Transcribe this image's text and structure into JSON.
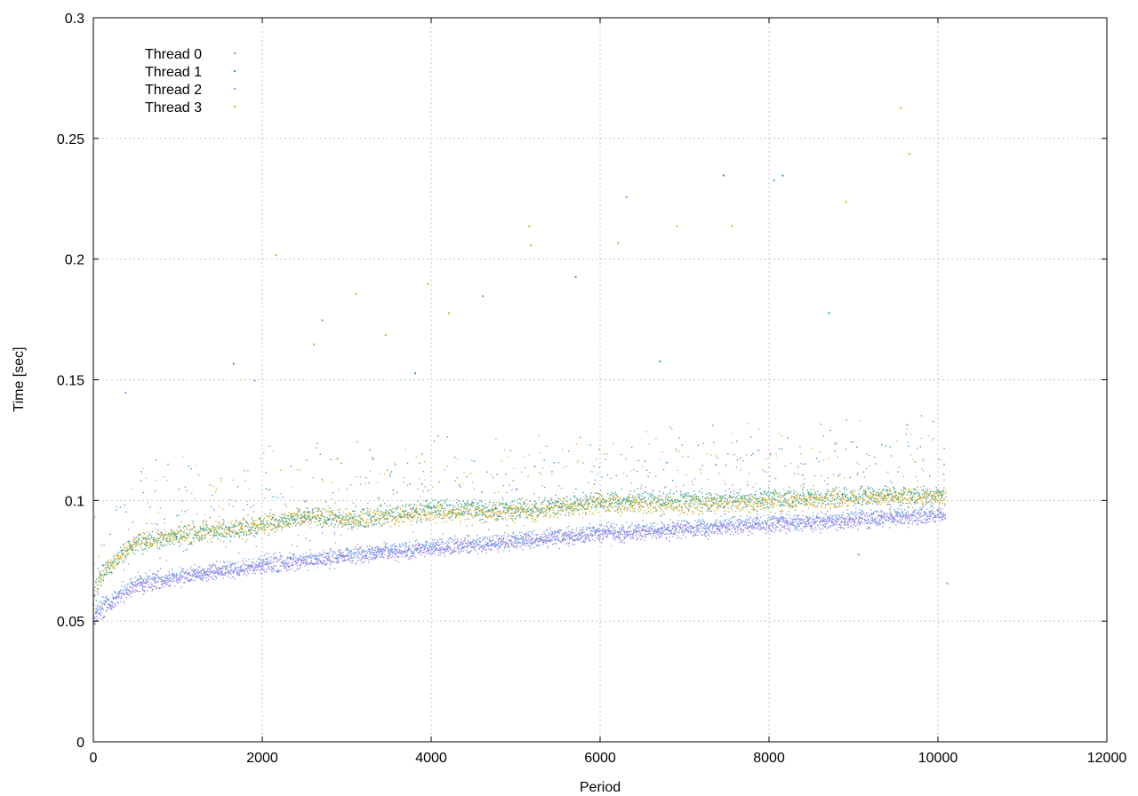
{
  "chart_data": {
    "type": "scatter",
    "title": "",
    "xlabel": "Period",
    "ylabel": "Time [sec]",
    "xlim": [
      0,
      12000
    ],
    "ylim": [
      0,
      0.3
    ],
    "xticks": [
      0,
      2000,
      4000,
      6000,
      8000,
      10000,
      12000
    ],
    "xtick_labels": [
      "0",
      "2000",
      "4000",
      "6000",
      "8000",
      "10000",
      "12000"
    ],
    "yticks": [
      0,
      0.05,
      0.1,
      0.15,
      0.2,
      0.25,
      0.3
    ],
    "ytick_labels": [
      "0",
      "0.05",
      "0.1",
      "0.15",
      "0.2",
      "0.25",
      "0.3"
    ],
    "grid": true,
    "legend_position": "top-left",
    "series": [
      {
        "name": "Thread 0",
        "color": "#9b7be0",
        "period_range": [
          0,
          10080
        ],
        "trend": [
          [
            0,
            0.05
          ],
          [
            100,
            0.055
          ],
          [
            500,
            0.065
          ],
          [
            1000,
            0.068
          ],
          [
            2000,
            0.073
          ],
          [
            3000,
            0.077
          ],
          [
            4000,
            0.08
          ],
          [
            5000,
            0.083
          ],
          [
            6000,
            0.086
          ],
          [
            7000,
            0.088
          ],
          [
            8000,
            0.09
          ],
          [
            9000,
            0.092
          ],
          [
            10000,
            0.094
          ]
        ],
        "outliers": [
          [
            2500,
            0.1
          ],
          [
            5000,
            0.105
          ],
          [
            9050,
            0.078
          ]
        ]
      },
      {
        "name": "Thread 1",
        "color": "#2ca087",
        "period_range": [
          0,
          10080
        ],
        "trend": [
          [
            0,
            0.06
          ],
          [
            100,
            0.07
          ],
          [
            500,
            0.083
          ],
          [
            1000,
            0.086
          ],
          [
            2000,
            0.09
          ],
          [
            2600,
            0.094
          ],
          [
            3000,
            0.092
          ],
          [
            4000,
            0.097
          ],
          [
            5000,
            0.096
          ],
          [
            6000,
            0.1
          ],
          [
            7000,
            0.1
          ],
          [
            8000,
            0.101
          ],
          [
            9000,
            0.102
          ],
          [
            10000,
            0.103
          ]
        ],
        "outliers": [
          [
            1650,
            0.157
          ],
          [
            3800,
            0.153
          ],
          [
            5700,
            0.193
          ],
          [
            6700,
            0.158
          ],
          [
            7450,
            0.235
          ],
          [
            8150,
            0.235
          ],
          [
            8700,
            0.178
          ]
        ]
      },
      {
        "name": "Thread 2",
        "color": "#6aa2f0",
        "period_range": [
          0,
          10080
        ],
        "trend": [
          [
            0,
            0.052
          ],
          [
            100,
            0.057
          ],
          [
            500,
            0.066
          ],
          [
            1000,
            0.069
          ],
          [
            2000,
            0.074
          ],
          [
            3000,
            0.078
          ],
          [
            4000,
            0.081
          ],
          [
            5000,
            0.084
          ],
          [
            6000,
            0.087
          ],
          [
            7000,
            0.089
          ],
          [
            8000,
            0.091
          ],
          [
            9000,
            0.093
          ],
          [
            10000,
            0.095
          ]
        ],
        "outliers": [
          [
            370,
            0.145
          ],
          [
            1900,
            0.15
          ],
          [
            2700,
            0.175
          ],
          [
            4600,
            0.185
          ],
          [
            6300,
            0.226
          ],
          [
            8050,
            0.233
          ],
          [
            10100,
            0.066
          ]
        ]
      },
      {
        "name": "Thread 3",
        "color": "#d4b033",
        "period_range": [
          0,
          10080
        ],
        "trend": [
          [
            0,
            0.06
          ],
          [
            100,
            0.07
          ],
          [
            500,
            0.083
          ],
          [
            1000,
            0.086
          ],
          [
            2000,
            0.09
          ],
          [
            2600,
            0.094
          ],
          [
            3000,
            0.092
          ],
          [
            4000,
            0.095
          ],
          [
            5000,
            0.095
          ],
          [
            6000,
            0.099
          ],
          [
            7000,
            0.098
          ],
          [
            8000,
            0.1
          ],
          [
            9000,
            0.101
          ],
          [
            10000,
            0.102
          ]
        ],
        "outliers": [
          [
            2150,
            0.202
          ],
          [
            2600,
            0.165
          ],
          [
            3100,
            0.186
          ],
          [
            3450,
            0.169
          ],
          [
            3950,
            0.19
          ],
          [
            4200,
            0.178
          ],
          [
            5150,
            0.214
          ],
          [
            5170,
            0.206
          ],
          [
            6200,
            0.207
          ],
          [
            6900,
            0.214
          ],
          [
            7550,
            0.214
          ],
          [
            8900,
            0.224
          ],
          [
            9550,
            0.263
          ],
          [
            9650,
            0.244
          ]
        ]
      }
    ]
  }
}
